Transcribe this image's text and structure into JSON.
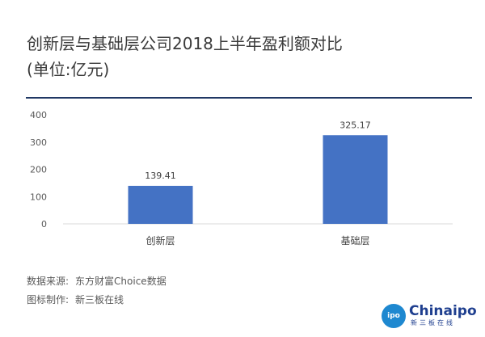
{
  "header": {
    "title_line1": "创新层与基础层公司2018上半年盈利额对比",
    "title_line2": "(单位:亿元)"
  },
  "footer": {
    "source_label": "数据来源:",
    "source_value": "东方财富Choice数据",
    "maker_label": "图标制作:",
    "maker_value": "新三板在线"
  },
  "logo": {
    "badge_text": "ipo",
    "name": "Chinaipo",
    "subtitle": "新三板在线"
  },
  "chart_data": {
    "type": "bar",
    "title": "创新层与基础层公司2018上半年盈利额对比",
    "ylabel": "",
    "xlabel": "",
    "categories": [
      "创新层",
      "基础层"
    ],
    "values": [
      139.41,
      325.17
    ],
    "value_labels": [
      "139.41",
      "325.17"
    ],
    "yticks": [
      0,
      100,
      200,
      300,
      400
    ],
    "ylim": [
      0,
      400
    ],
    "grid": false,
    "bar_color": "#4472c4"
  }
}
